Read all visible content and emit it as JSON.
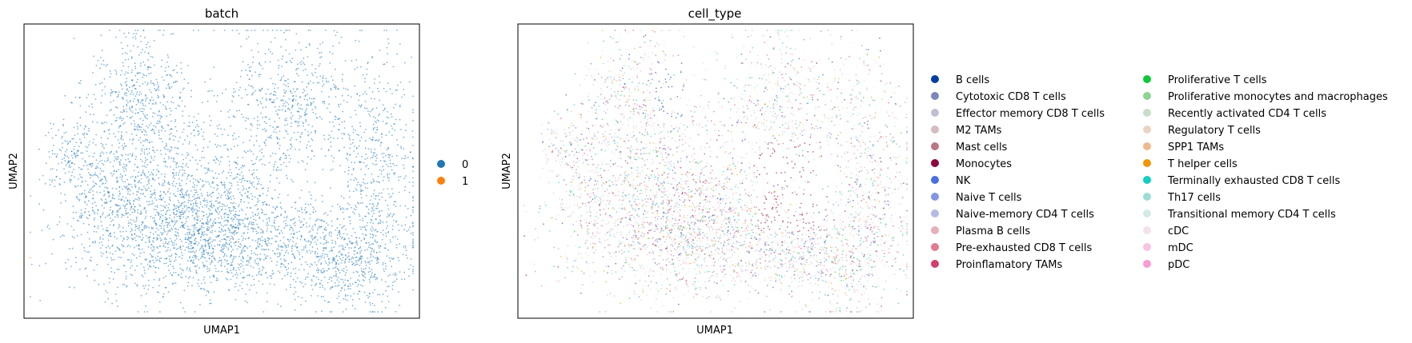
{
  "chart_data": [
    {
      "type": "scatter",
      "title": "batch",
      "xlabel": "UMAP1",
      "ylabel": "UMAP2",
      "xticks": [],
      "yticks": [],
      "legend_position": "right",
      "legend": [
        {
          "label": "0",
          "color": "#1f77b4"
        },
        {
          "label": "1",
          "color": "#ff7f0e"
        }
      ]
    },
    {
      "type": "scatter",
      "title": "cell_type",
      "xlabel": "UMAP1",
      "ylabel": "UMAP2",
      "xticks": [],
      "yticks": [],
      "legend_position": "right",
      "legend": [
        {
          "label": "B cells",
          "color": "#023fa5"
        },
        {
          "label": "Cytotoxic CD8 T cells",
          "color": "#7d87b9"
        },
        {
          "label": "Effector memory CD8 T cells",
          "color": "#bec1d4"
        },
        {
          "label": "M2 TAMs",
          "color": "#d6bcc0"
        },
        {
          "label": "Mast cells",
          "color": "#bb7784"
        },
        {
          "label": "Monocytes",
          "color": "#8e063b"
        },
        {
          "label": "NK",
          "color": "#4a6fe3"
        },
        {
          "label": "Naive T cells",
          "color": "#8595e1"
        },
        {
          "label": "Naive-memory CD4 T cells",
          "color": "#b5bbe3"
        },
        {
          "label": "Plasma B cells",
          "color": "#e6afb9"
        },
        {
          "label": "Pre-exhausted CD8 T cells",
          "color": "#e07b91"
        },
        {
          "label": "Proinflamatory TAMs",
          "color": "#d33f6a"
        },
        {
          "label": "Proliferative T cells",
          "color": "#11c638"
        },
        {
          "label": "Proliferative monocytes and macrophages",
          "color": "#8dd593"
        },
        {
          "label": "Recently activated CD4 T cells",
          "color": "#c6dec7"
        },
        {
          "label": "Regulatory T cells",
          "color": "#ead3c6"
        },
        {
          "label": "SPP1 TAMs",
          "color": "#f0b98d"
        },
        {
          "label": "T helper cells",
          "color": "#ef9708"
        },
        {
          "label": "Terminally exhausted CD8 T cells",
          "color": "#0fcfc0"
        },
        {
          "label": "Th17 cells",
          "color": "#9cded6"
        },
        {
          "label": "Transitional memory CD4 T cells",
          "color": "#d5eae7"
        },
        {
          "label": "cDC",
          "color": "#f3e1eb"
        },
        {
          "label": "mDC",
          "color": "#f6c4e1"
        },
        {
          "label": "pDC",
          "color": "#f79cd4"
        }
      ]
    }
  ]
}
